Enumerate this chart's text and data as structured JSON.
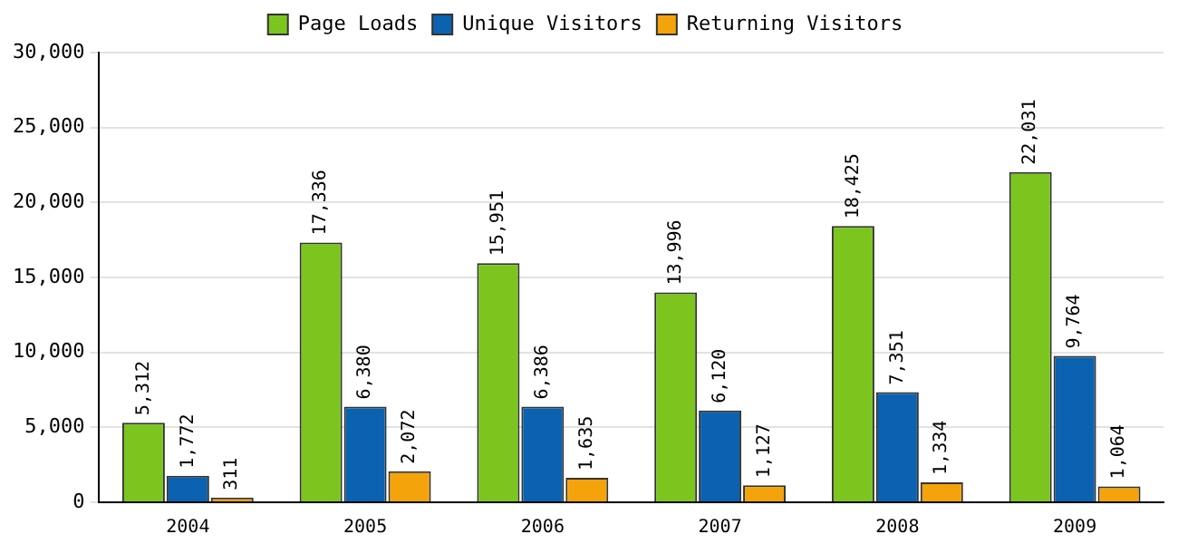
{
  "chart_data": {
    "type": "bar",
    "categories": [
      "2004",
      "2005",
      "2006",
      "2007",
      "2008",
      "2009"
    ],
    "series": [
      {
        "name": "Page Loads",
        "color": "#7cc51f",
        "values": [
          5312,
          17336,
          15951,
          13996,
          18425,
          22031
        ],
        "value_labels": [
          "5,312",
          "17,336",
          "15,951",
          "13,996",
          "18,425",
          "22,031"
        ]
      },
      {
        "name": "Unique Visitors",
        "color": "#0a62b0",
        "values": [
          1772,
          6380,
          6386,
          6120,
          7351,
          9764
        ],
        "value_labels": [
          "1,772",
          "6,380",
          "6,386",
          "6,120",
          "7,351",
          "9,764"
        ]
      },
      {
        "name": "Returning Visitors",
        "color": "#f5a30a",
        "values": [
          311,
          2072,
          1635,
          1127,
          1334,
          1064
        ],
        "value_labels": [
          "311",
          "2,072",
          "1,635",
          "1,127",
          "1,334",
          "1,064"
        ]
      }
    ],
    "ylim": [
      0,
      30000
    ],
    "yticks": [
      {
        "value": 0,
        "label": "0"
      },
      {
        "value": 5000,
        "label": "5,000"
      },
      {
        "value": 10000,
        "label": "10,000"
      },
      {
        "value": 15000,
        "label": "15,000"
      },
      {
        "value": 20000,
        "label": "20,000"
      },
      {
        "value": 25000,
        "label": "25,000"
      },
      {
        "value": 30000,
        "label": "30,000"
      }
    ],
    "grid": "y",
    "legend": "top"
  }
}
